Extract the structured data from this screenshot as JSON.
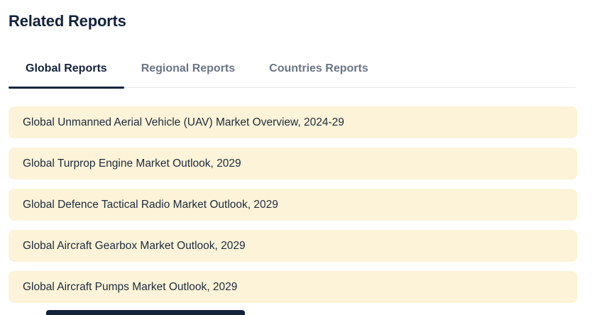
{
  "header": {
    "title": "Related Reports"
  },
  "tabs": {
    "items": [
      {
        "label": "Global Reports",
        "active": true
      },
      {
        "label": "Regional Reports",
        "active": false
      },
      {
        "label": "Countries Reports",
        "active": false
      }
    ]
  },
  "reports": {
    "items": [
      "Global Unmanned Aerial Vehicle (UAV) Market Overview, 2024-29",
      "Global Turprop Engine Market Outlook, 2029",
      "Global Defence Tactical Radio Market Outlook, 2029",
      "Global Aircraft Gearbox Market Outlook, 2029",
      "Global Aircraft Pumps Market Outlook, 2029"
    ]
  },
  "colors": {
    "accent_navy": "#14233c",
    "tab_inactive": "#697586",
    "card_background": "#fcf3d8",
    "card_text": "#1e2a3b",
    "divider": "#e7e9ee",
    "page_bg": "#ffffff"
  }
}
